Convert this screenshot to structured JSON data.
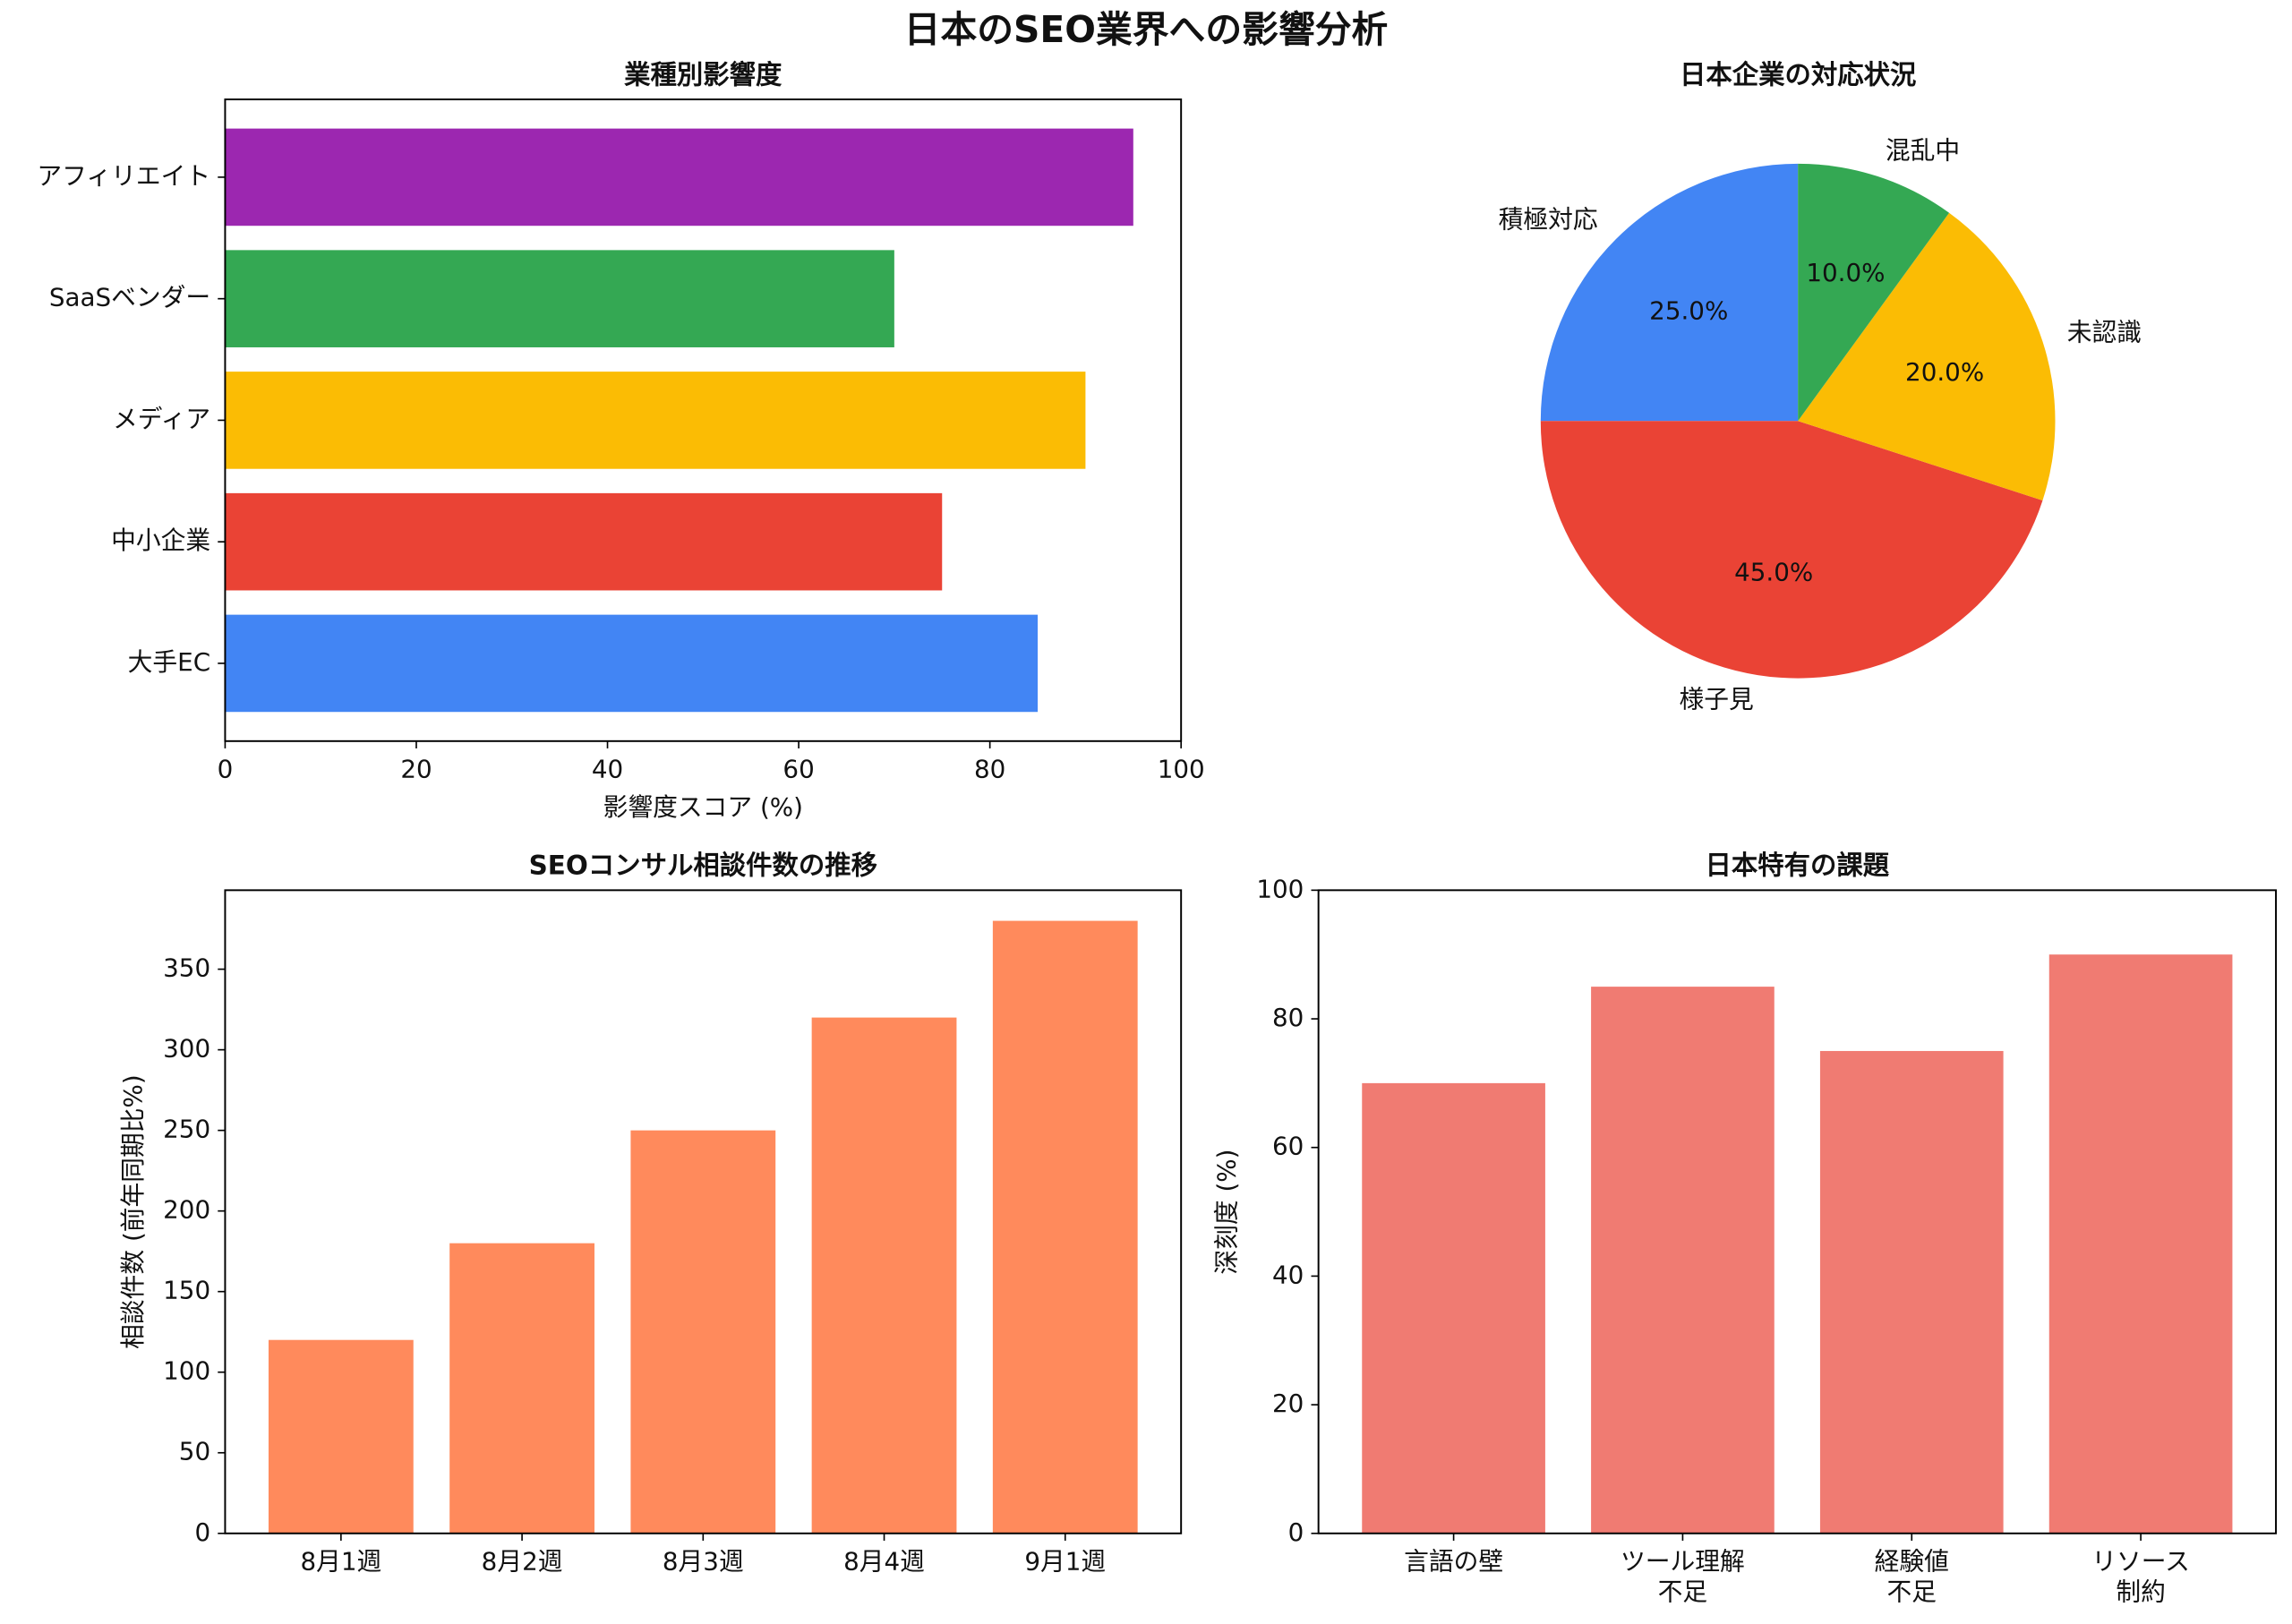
{
  "title": "日本のSEO業界への影響分析",
  "chart_data": [
    {
      "type": "barh",
      "title": "業種別影響度",
      "xlabel": "影響度スコア (%)",
      "categories": [
        "大手EC",
        "中小企業",
        "メディア",
        "SaaSベンダー",
        "アフィリエイト"
      ],
      "values": [
        85,
        75,
        90,
        70,
        95
      ],
      "colors": [
        "#4285f4",
        "#ea4335",
        "#fbbc04",
        "#34a853",
        "#9c27b0"
      ],
      "xlim": [
        0,
        100
      ],
      "xticks": [
        0,
        20,
        40,
        60,
        80,
        100
      ]
    },
    {
      "type": "pie",
      "title": "日本企業の対応状況",
      "categories": [
        "積極対応",
        "様子見",
        "未認識",
        "混乱中"
      ],
      "values": [
        25,
        45,
        20,
        10
      ],
      "value_labels": [
        "25.0%",
        "45.0%",
        "20.0%",
        "10.0%"
      ],
      "colors": [
        "#4285f4",
        "#ea4335",
        "#fbbc04",
        "#34a853"
      ]
    },
    {
      "type": "bar",
      "title": "SEOコンサル相談件数の推移",
      "ylabel": "相談件数 (前年同期比%)",
      "categories": [
        "8月1週",
        "8月2週",
        "8月3週",
        "8月4週",
        "9月1週"
      ],
      "values": [
        120,
        180,
        250,
        320,
        380
      ],
      "color": "#ff8a5c",
      "ylim": [
        0,
        399
      ],
      "yticks": [
        0,
        50,
        100,
        150,
        200,
        250,
        300,
        350
      ]
    },
    {
      "type": "bar",
      "title": "日本特有の課題",
      "ylabel": "深刻度 (%)",
      "categories": [
        "言語の壁",
        "ツール理解\n不足",
        "経験値\n不足",
        "リソース\n制約"
      ],
      "values": [
        70,
        85,
        75,
        90
      ],
      "color": "#f07b72",
      "ylim": [
        0,
        100
      ],
      "yticks": [
        0,
        20,
        40,
        60,
        80,
        100
      ]
    }
  ]
}
